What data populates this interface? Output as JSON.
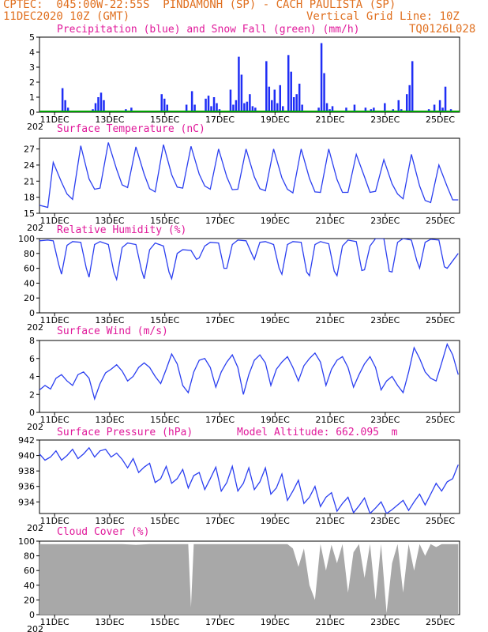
{
  "header": {
    "line1": "CPTEC:  045:00W-22:55S  PINDAMONH (SP) - CACH PAULISTA (SP)",
    "line2_left": "11DEC2020 10Z (GMT)",
    "line2_right": "Vertical Grid Line: 10Z",
    "line3_right": "TQ0126L028"
  },
  "colors": {
    "header": "#e07020",
    "title": "#e0189a",
    "line": "#2b3ff0",
    "precip": "#1f2ef5",
    "snow": "#00a000",
    "cloud": "#a8a8a8"
  },
  "x_axis": {
    "labels": [
      "11DEC",
      "13DEC",
      "15DEC",
      "17DEC",
      "19DEC",
      "21DEC",
      "23DEC",
      "25DEC"
    ],
    "year_fragment": "202"
  },
  "chart_data": [
    {
      "id": "precip",
      "type": "bar",
      "title": "Precipitation (blue) and Snow Fall (green) (mm/h)",
      "xlabel": "",
      "ylabel": "",
      "ylim": [
        0,
        5
      ],
      "yticks": [
        "0",
        "1",
        "2",
        "3",
        "4",
        "5"
      ],
      "series": [
        {
          "name": "Precipitation",
          "x": [
            0.8,
            0.9,
            1.0,
            1.9,
            2.0,
            2.1,
            2.2,
            2.3,
            3.1,
            3.3,
            3.5,
            4.4,
            4.5,
            4.6,
            5.3,
            5.5,
            5.6,
            5.7,
            6.0,
            6.1,
            6.2,
            6.3,
            6.4,
            6.5,
            6.9,
            7.0,
            7.1,
            7.2,
            7.3,
            7.4,
            7.5,
            7.6,
            7.7,
            7.8,
            8.2,
            8.3,
            8.4,
            8.5,
            8.6,
            8.7,
            8.8,
            9.0,
            9.1,
            9.2,
            9.3,
            9.4,
            9.5,
            10.1,
            10.2,
            10.3,
            10.4,
            10.5,
            10.6,
            11.1,
            11.4,
            11.8,
            12.0,
            12.1,
            12.5,
            12.8,
            13.0,
            13.1,
            13.3,
            13.4,
            13.5,
            14.1,
            14.3,
            14.5,
            14.6,
            14.7,
            14.9
          ],
          "values": [
            1.6,
            0.8,
            0.3,
            0.2,
            0.6,
            1.0,
            1.3,
            0.8,
            0.2,
            0.3,
            0.1,
            1.2,
            0.9,
            0.5,
            0.5,
            1.4,
            0.5,
            0.1,
            0.9,
            1.1,
            0.4,
            1.0,
            0.6,
            0.2,
            1.5,
            0.5,
            0.8,
            3.7,
            2.5,
            0.6,
            0.7,
            1.2,
            0.4,
            0.3,
            3.4,
            1.7,
            0.8,
            1.5,
            0.6,
            1.8,
            0.4,
            3.8,
            2.7,
            1.0,
            1.2,
            1.9,
            0.5,
            0.3,
            4.6,
            2.6,
            0.6,
            0.2,
            0.4,
            0.3,
            0.5,
            0.3,
            0.2,
            0.3,
            0.6,
            0.2,
            0.8,
            0.2,
            1.2,
            1.8,
            3.4,
            0.2,
            0.5,
            0.8,
            0.3,
            1.7,
            0.2
          ]
        },
        {
          "name": "Snow Fall",
          "x": [],
          "values": []
        }
      ]
    },
    {
      "id": "temp",
      "type": "line",
      "title": "Surface Temperature (nC)",
      "xlabel": "",
      "ylabel": "",
      "ylim": [
        15,
        29
      ],
      "yticks": [
        "15",
        "18",
        "21",
        "24",
        "27"
      ],
      "series": [
        {
          "name": "",
          "x": [
            0,
            0.3,
            0.5,
            0.8,
            1.0,
            1.2,
            1.5,
            1.8,
            2.0,
            2.2,
            2.5,
            2.8,
            3.0,
            3.2,
            3.5,
            3.8,
            4.0,
            4.2,
            4.5,
            4.8,
            5.0,
            5.2,
            5.5,
            5.8,
            6.0,
            6.2,
            6.5,
            6.8,
            7.0,
            7.2,
            7.5,
            7.8,
            8.0,
            8.2,
            8.5,
            8.8,
            9.0,
            9.2,
            9.5,
            9.8,
            10.0,
            10.2,
            10.5,
            10.8,
            11.0,
            11.2,
            11.5,
            11.8,
            12.0,
            12.2,
            12.5,
            12.8,
            13.0,
            13.2,
            13.5,
            13.8,
            14.0,
            14.2,
            14.5,
            14.8,
            15.0,
            15.2
          ],
          "values": [
            16.5,
            16.1,
            24.5,
            20.8,
            18.6,
            17.6,
            27.6,
            21.4,
            19.5,
            19.7,
            28.2,
            23.2,
            20.3,
            19.8,
            27.4,
            22.3,
            19.6,
            19.0,
            27.8,
            22.2,
            19.9,
            19.7,
            27.5,
            22.3,
            20.1,
            19.5,
            27.0,
            21.8,
            19.4,
            19.5,
            27.0,
            21.8,
            19.6,
            19.2,
            27.0,
            21.6,
            19.5,
            18.8,
            27.0,
            21.5,
            19.0,
            18.9,
            27.0,
            21.3,
            18.9,
            18.9,
            26.0,
            21.8,
            18.9,
            19.1,
            25.0,
            20.5,
            18.6,
            17.7,
            26.0,
            20.1,
            17.4,
            17.0,
            24.0,
            20.0,
            17.5,
            17.5
          ]
        }
      ]
    },
    {
      "id": "rh",
      "type": "line",
      "title": "Relative Humidity (%)",
      "xlabel": "",
      "ylabel": "",
      "ylim": [
        0,
        100
      ],
      "yticks": [
        "0",
        "20",
        "40",
        "60",
        "80",
        "100"
      ],
      "series": [
        {
          "name": "",
          "x": [
            0,
            0.3,
            0.5,
            0.7,
            0.8,
            1.0,
            1.2,
            1.5,
            1.7,
            1.8,
            2.0,
            2.2,
            2.5,
            2.7,
            2.8,
            3.0,
            3.2,
            3.5,
            3.7,
            3.8,
            4.0,
            4.2,
            4.5,
            4.7,
            4.8,
            5.0,
            5.2,
            5.5,
            5.7,
            5.8,
            6.0,
            6.2,
            6.5,
            6.7,
            6.8,
            7.0,
            7.2,
            7.5,
            7.7,
            7.8,
            8.0,
            8.2,
            8.5,
            8.7,
            8.8,
            9.0,
            9.2,
            9.5,
            9.7,
            9.8,
            10.0,
            10.2,
            10.5,
            10.7,
            10.8,
            11.0,
            11.2,
            11.5,
            11.7,
            11.8,
            12.0,
            12.2,
            12.5,
            12.7,
            12.8,
            13.0,
            13.2,
            13.5,
            13.7,
            13.8,
            14.0,
            14.2,
            14.5,
            14.7,
            14.8,
            15.0,
            15.2
          ],
          "values": [
            97,
            98,
            97,
            65,
            52,
            91,
            96,
            95,
            60,
            48,
            92,
            96,
            92,
            55,
            45,
            88,
            94,
            92,
            58,
            46,
            85,
            94,
            90,
            55,
            46,
            80,
            85,
            84,
            72,
            74,
            90,
            95,
            94,
            60,
            60,
            92,
            98,
            97,
            80,
            72,
            95,
            96,
            92,
            60,
            52,
            92,
            96,
            95,
            55,
            50,
            92,
            96,
            93,
            56,
            50,
            90,
            98,
            96,
            57,
            58,
            90,
            100,
            100,
            56,
            55,
            95,
            100,
            98,
            70,
            60,
            95,
            99,
            98,
            62,
            60,
            70,
            80
          ]
        }
      ]
    },
    {
      "id": "wind",
      "type": "line",
      "title": "Surface Wind (m/s)",
      "xlabel": "",
      "ylabel": "",
      "ylim": [
        0,
        8
      ],
      "yticks": [
        "0",
        "2",
        "4",
        "6",
        "8"
      ],
      "series": [
        {
          "name": "",
          "x": [
            0,
            0.2,
            0.4,
            0.6,
            0.8,
            1.0,
            1.2,
            1.4,
            1.6,
            1.8,
            2.0,
            2.2,
            2.4,
            2.6,
            2.8,
            3.0,
            3.2,
            3.4,
            3.6,
            3.8,
            4.0,
            4.2,
            4.4,
            4.6,
            4.8,
            5.0,
            5.2,
            5.4,
            5.6,
            5.8,
            6.0,
            6.2,
            6.4,
            6.6,
            6.8,
            7.0,
            7.2,
            7.4,
            7.6,
            7.8,
            8.0,
            8.2,
            8.4,
            8.6,
            8.8,
            9.0,
            9.2,
            9.4,
            9.6,
            9.8,
            10.0,
            10.2,
            10.4,
            10.6,
            10.8,
            11.0,
            11.2,
            11.4,
            11.6,
            11.8,
            12.0,
            12.2,
            12.4,
            12.6,
            12.8,
            13.0,
            13.2,
            13.4,
            13.6,
            13.8,
            14.0,
            14.2,
            14.4,
            14.6,
            14.8,
            15.0,
            15.2
          ],
          "values": [
            2.5,
            3.0,
            2.6,
            3.8,
            4.2,
            3.5,
            3.0,
            4.2,
            4.5,
            3.8,
            1.5,
            3.2,
            4.4,
            4.8,
            5.3,
            4.6,
            3.5,
            4.0,
            5.0,
            5.5,
            5.0,
            4.0,
            3.2,
            4.8,
            6.5,
            5.4,
            3.0,
            2.2,
            4.5,
            5.8,
            6.0,
            5.0,
            2.8,
            4.5,
            5.6,
            6.4,
            5.0,
            2.0,
            4.2,
            5.8,
            6.4,
            5.5,
            3.0,
            4.8,
            5.6,
            6.2,
            5.0,
            3.5,
            5.2,
            6.0,
            6.6,
            5.6,
            3.0,
            4.8,
            5.8,
            6.2,
            5.0,
            2.8,
            4.2,
            5.4,
            6.2,
            5.0,
            2.5,
            3.5,
            4.0,
            3.0,
            2.2,
            4.5,
            7.2,
            6.0,
            4.5,
            3.8,
            3.5,
            5.5,
            7.6,
            6.4,
            4.2
          ]
        }
      ]
    },
    {
      "id": "pressure",
      "type": "line",
      "title": "Surface Pressure (hPa)",
      "subtitle": "Model Altitude: 662.095  m",
      "xlabel": "",
      "ylabel": "",
      "ylim": [
        932.5,
        942
      ],
      "yticks": [
        "934",
        "936",
        "938",
        "940",
        "942"
      ],
      "series": [
        {
          "name": "",
          "x": [
            0,
            0.2,
            0.4,
            0.6,
            0.8,
            1.0,
            1.2,
            1.4,
            1.6,
            1.8,
            2.0,
            2.2,
            2.4,
            2.6,
            2.8,
            3.0,
            3.2,
            3.4,
            3.6,
            3.8,
            4.0,
            4.2,
            4.4,
            4.6,
            4.8,
            5.0,
            5.2,
            5.4,
            5.6,
            5.8,
            6.0,
            6.2,
            6.4,
            6.6,
            6.8,
            7.0,
            7.2,
            7.4,
            7.6,
            7.8,
            8.0,
            8.2,
            8.4,
            8.6,
            8.8,
            9.0,
            9.2,
            9.4,
            9.6,
            9.8,
            10.0,
            10.2,
            10.4,
            10.6,
            10.8,
            11.0,
            11.2,
            11.4,
            11.6,
            11.8,
            12.0,
            12.2,
            12.4,
            12.6,
            12.8,
            13.0,
            13.2,
            13.4,
            13.6,
            13.8,
            14.0,
            14.2,
            14.4,
            14.6,
            14.8,
            15.0,
            15.2
          ],
          "values": [
            940.2,
            939.4,
            939.8,
            940.6,
            939.4,
            940.0,
            940.8,
            939.6,
            940.2,
            941.0,
            939.8,
            940.6,
            940.8,
            939.8,
            940.3,
            939.5,
            938.4,
            939.6,
            937.8,
            938.5,
            939.0,
            936.5,
            937.0,
            938.6,
            936.4,
            937.0,
            938.2,
            935.8,
            937.4,
            937.8,
            935.6,
            937.0,
            938.5,
            935.4,
            936.5,
            938.6,
            935.4,
            936.4,
            938.4,
            935.6,
            936.6,
            938.4,
            935.0,
            935.8,
            937.6,
            934.2,
            935.4,
            936.8,
            933.8,
            934.6,
            936.0,
            933.4,
            934.6,
            935.2,
            932.8,
            933.8,
            934.6,
            932.6,
            933.5,
            934.5,
            932.5,
            933.2,
            934.0,
            932.5,
            933.0,
            933.6,
            934.2,
            932.9,
            934.0,
            935.0,
            933.6,
            935.0,
            936.4,
            935.4,
            936.6,
            937.0,
            938.8
          ]
        }
      ]
    },
    {
      "id": "cloud",
      "type": "area",
      "title": "Cloud Cover (%)",
      "xlabel": "",
      "ylabel": "",
      "ylim": [
        0,
        100
      ],
      "yticks": [
        "0",
        "20",
        "40",
        "60",
        "80",
        "100"
      ],
      "series": [
        {
          "name": "",
          "x": [
            0,
            0.5,
            1.0,
            1.5,
            2.0,
            2.5,
            3.0,
            3.5,
            4.0,
            4.5,
            5.0,
            5.4,
            5.5,
            5.6,
            6.0,
            6.5,
            7.0,
            7.5,
            8.0,
            8.5,
            9.0,
            9.2,
            9.4,
            9.6,
            9.8,
            10.0,
            10.2,
            10.4,
            10.6,
            10.8,
            11.0,
            11.2,
            11.4,
            11.6,
            11.8,
            12.0,
            12.2,
            12.4,
            12.6,
            12.8,
            13.0,
            13.2,
            13.4,
            13.6,
            13.8,
            14.0,
            14.2,
            14.4,
            14.6,
            14.8,
            15.0,
            15.2
          ],
          "values": [
            96,
            96,
            96,
            96,
            96,
            96,
            96,
            95,
            96,
            96,
            96,
            96,
            10,
            96,
            96,
            96,
            96,
            96,
            96,
            96,
            96,
            90,
            65,
            90,
            40,
            20,
            96,
            60,
            95,
            70,
            96,
            30,
            85,
            96,
            50,
            96,
            20,
            96,
            2,
            70,
            96,
            30,
            96,
            60,
            96,
            80,
            96,
            92,
            96,
            96,
            96,
            96
          ]
        }
      ]
    }
  ]
}
